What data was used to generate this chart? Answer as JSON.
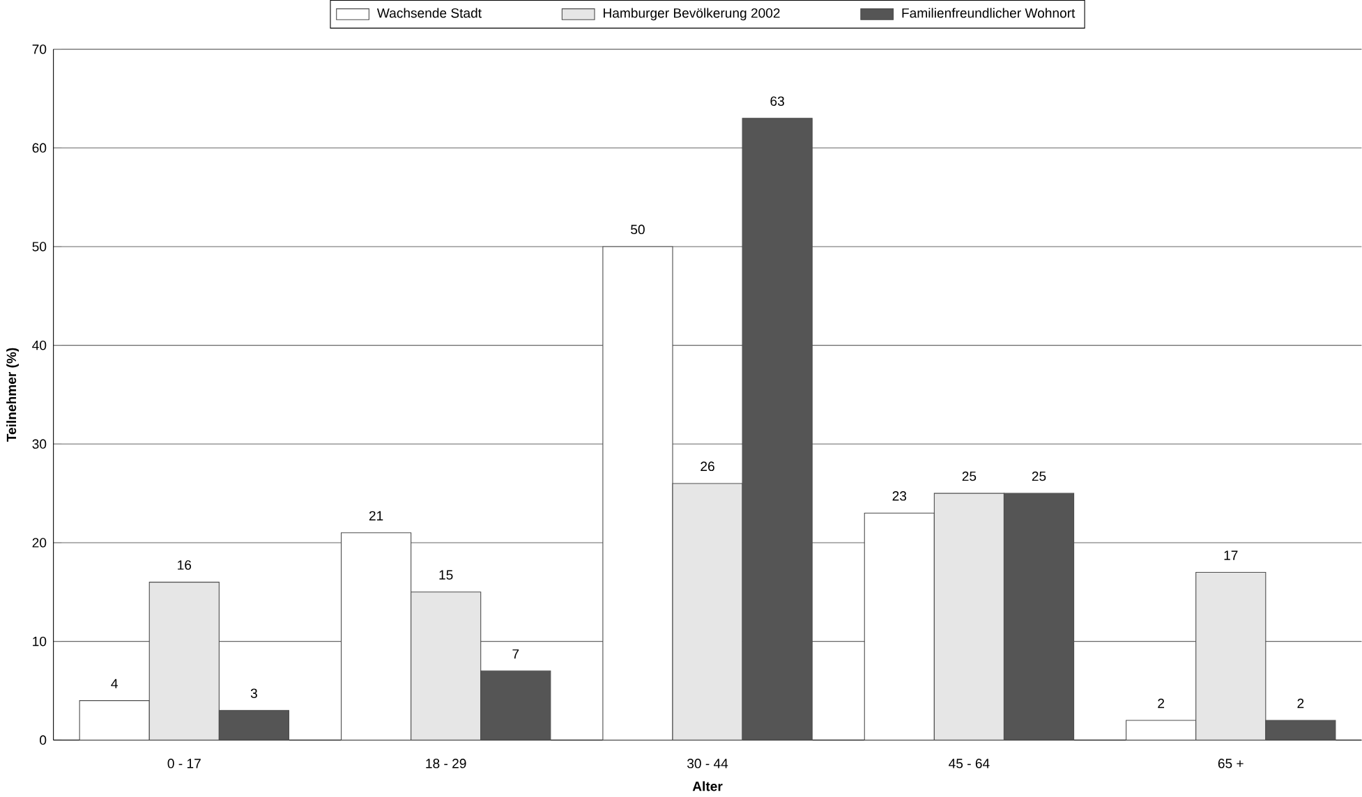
{
  "chart_data": {
    "type": "bar",
    "xlabel": "Alter",
    "ylabel": "Teilnehmer (%)",
    "categories": [
      "0 - 17",
      "18 - 29",
      "30 - 44",
      "45 - 64",
      "65 +"
    ],
    "series": [
      {
        "name": "Wachsende Stadt",
        "color": "#ffffff",
        "values": [
          4,
          21,
          50,
          23,
          2
        ]
      },
      {
        "name": "Hamburger Bevölkerung 2002",
        "color": "#e6e6e6",
        "values": [
          16,
          15,
          26,
          25,
          17
        ]
      },
      {
        "name": "Familienfreundlicher Wohnort",
        "color": "#555555",
        "values": [
          3,
          7,
          63,
          25,
          2
        ]
      }
    ],
    "ylim": [
      0,
      70
    ],
    "yticks": [
      0,
      10,
      20,
      30,
      40,
      50,
      60,
      70
    ],
    "grid": "y",
    "legend": "top",
    "data_labels": true
  }
}
